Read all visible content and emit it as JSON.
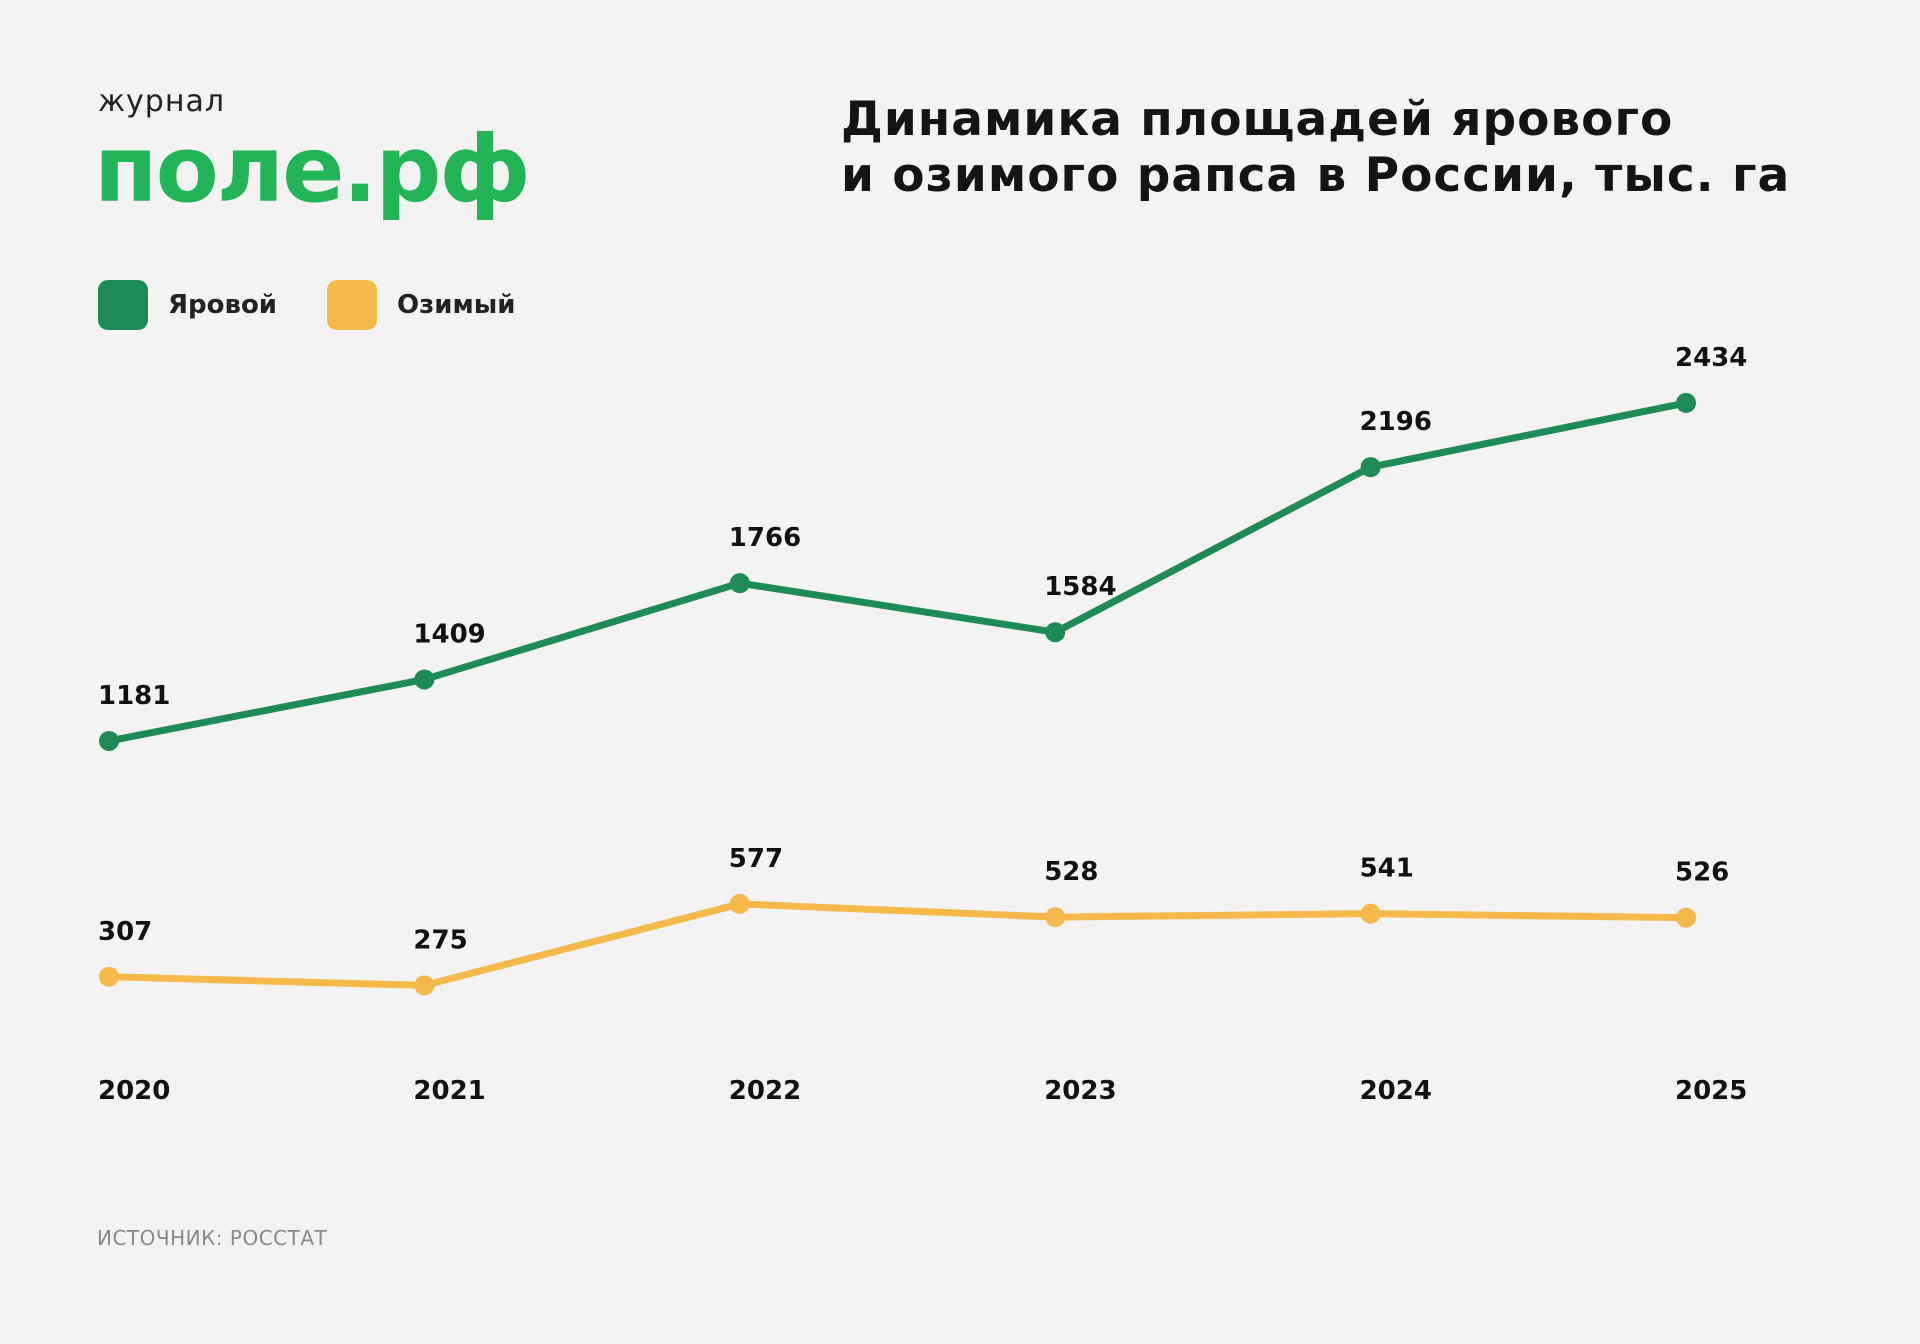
{
  "logo": {
    "small": "журнал",
    "big": "поле.рф"
  },
  "source": "ИСТОЧНИК: РОССТАТ",
  "colors": {
    "background": "#f3f3f3",
    "spring": "#1e8a55",
    "winter": "#f5b94b",
    "logo": "#22b455"
  },
  "chart_data": {
    "type": "line",
    "title": "Динамика площадей ярового и озимого рапса в России, тыс. га",
    "title_lines": [
      "Динамика площадей ярового",
      "и озимого рапса в России, тыс. га"
    ],
    "categories": [
      "2020",
      "2021",
      "2022",
      "2023",
      "2024",
      "2025"
    ],
    "series": [
      {
        "name": "Яровой",
        "color": "#1e8a55",
        "values": [
          1181,
          1409,
          1766,
          1584,
          2196,
          2434
        ]
      },
      {
        "name": "Озимый",
        "color": "#f5b94b",
        "values": [
          307,
          275,
          577,
          528,
          541,
          526
        ]
      }
    ],
    "grid": false,
    "legend_placement": "top-left",
    "data_labels": true
  }
}
